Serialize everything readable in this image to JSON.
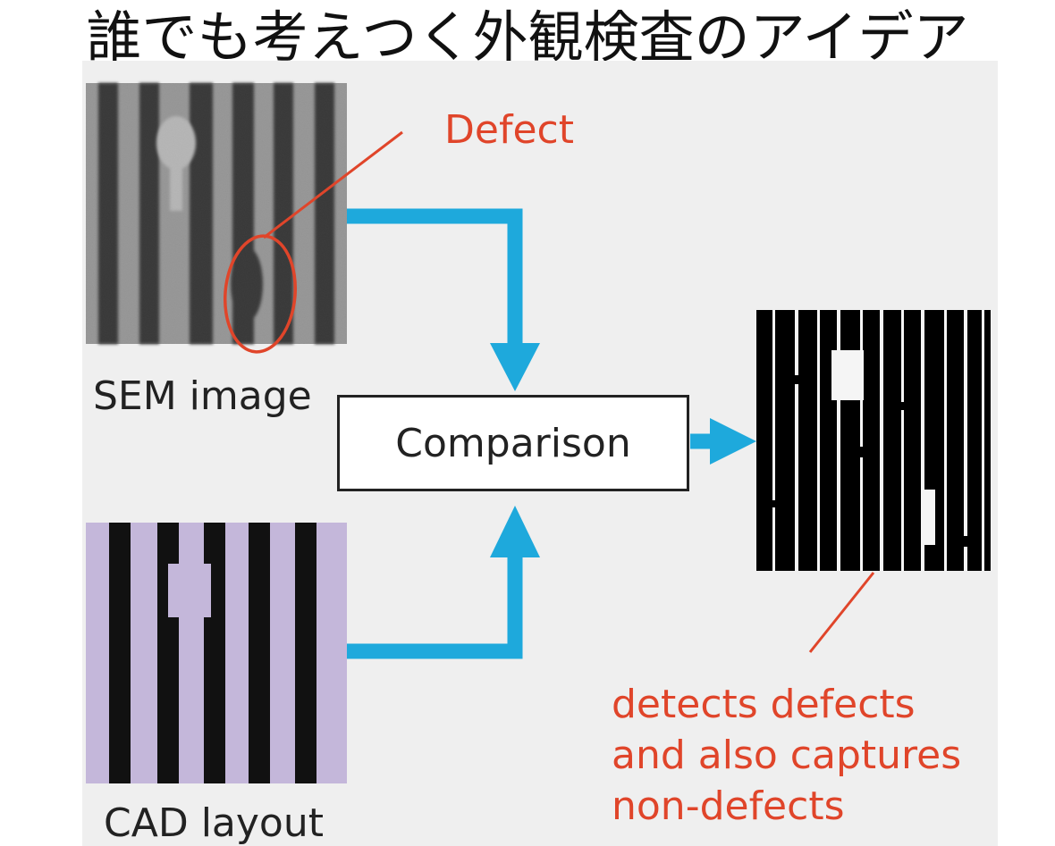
{
  "title": "誰でも考えつく外観検査のアイデア",
  "labels": {
    "sem_image": "SEM image",
    "cad_layout": "CAD layout",
    "defect": "Defect",
    "comparison": "Comparison",
    "result_note": [
      "detects defects",
      "and also captures",
      "non-defects"
    ]
  },
  "colors": {
    "background_panel": "#efefef",
    "arrow": "#1ea9dc",
    "annotation": "#e0452a",
    "cad_fill": "#c4b7da",
    "stripe": "#111111"
  },
  "icons": {
    "sem_image": "sem-image-picture",
    "cad_layout": "cad-layout-picture",
    "result": "result-difference-picture"
  }
}
